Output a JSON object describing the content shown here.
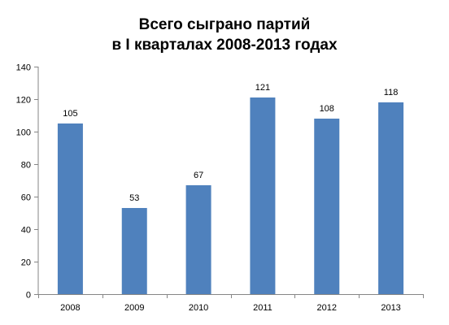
{
  "chart_data": {
    "type": "bar",
    "title_lines": [
      "Всего сыграно партий",
      "в I кварталах 2008-2013 годах"
    ],
    "categories": [
      "2008",
      "2009",
      "2010",
      "2011",
      "2012",
      "2013"
    ],
    "values": [
      105,
      53,
      67,
      121,
      108,
      118
    ],
    "data_labels": [
      "105",
      "53",
      "67",
      "121",
      "108",
      "118"
    ],
    "yticks": [
      "0",
      "20",
      "40",
      "60",
      "80",
      "100",
      "120",
      "140"
    ],
    "ylim": [
      0,
      140
    ],
    "grid": false,
    "legend": "none",
    "bar_color": "#4F81BD",
    "axis_color": "#868686"
  }
}
